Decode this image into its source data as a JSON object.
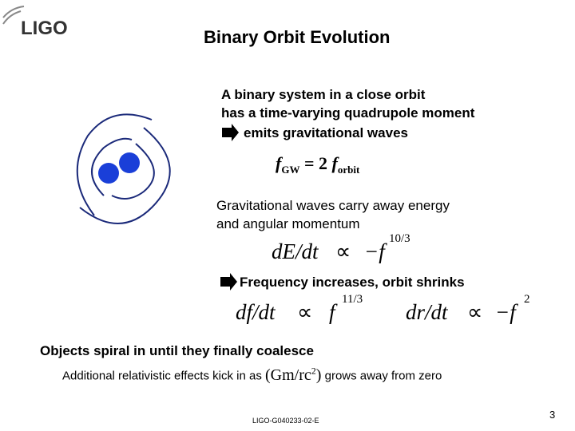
{
  "header": {
    "logo": "LIGO",
    "title": "Binary Orbit Evolution"
  },
  "intro": [
    "A binary system in a close orbit",
    "has a time-varying quadrupole moment",
    "emits gravitational waves"
  ],
  "frequency_relation": {
    "f1": "f",
    "sub1": "GW",
    "mid": "= 2",
    "f2": "f",
    "sub2": "orbit"
  },
  "energy_text": [
    "Gravitational waves carry away energy",
    "and angular momentum"
  ],
  "energy_equation": {
    "lhs": "dE/dt",
    "op": "∝",
    "rhs": "−f",
    "exp": "10/3"
  },
  "consequence": "Frequency increases, orbit shrinks",
  "frequency_equation": {
    "lhs": "df/dt",
    "op": "∝",
    "rhs": "f",
    "exp": "11/3"
  },
  "radius_equation": {
    "lhs": "dr/dt",
    "op": "∝",
    "rhs": "−f",
    "exp": "2"
  },
  "conclusion": "Objects spiral in until they finally coalesce",
  "note": {
    "before": "Additional relativistic effects kick in as",
    "expr": "(Gm/rc",
    "exp": "2",
    "close": ")",
    "after": "grows away from zero"
  },
  "footer": {
    "doc_id": "LIGO-G040233-02-E",
    "page": "3"
  }
}
